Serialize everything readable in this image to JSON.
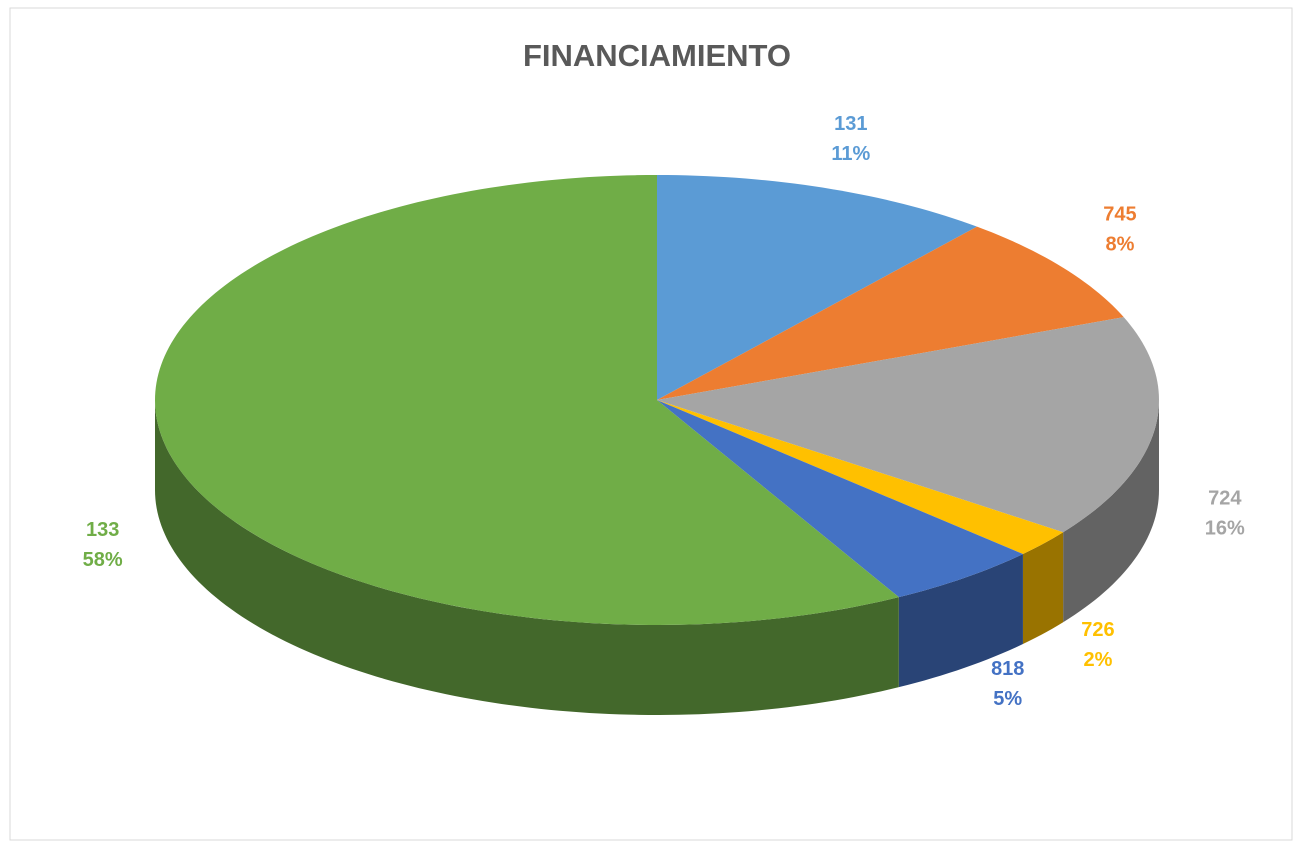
{
  "chart_data": {
    "type": "pie",
    "title": "FINANCIAMIENTO",
    "categories": [
      "131",
      "745",
      "724",
      "726",
      "818",
      "133"
    ],
    "values": [
      11,
      8,
      16,
      2,
      5,
      58
    ],
    "value_labels": [
      "11%",
      "8%",
      "16%",
      "2%",
      "5%",
      "58%"
    ],
    "colors": [
      "#5b9bd5",
      "#ed7d31",
      "#a5a5a5",
      "#ffc000",
      "#4472c4",
      "#70ad47"
    ]
  }
}
